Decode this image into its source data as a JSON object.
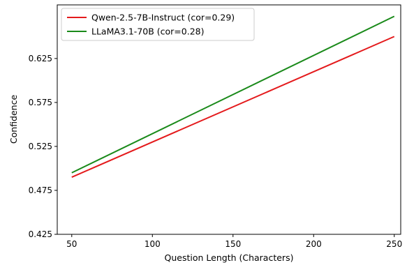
{
  "chart_data": {
    "type": "line",
    "title": "",
    "xlabel": "Question Length (Characters)",
    "ylabel": "Confidence",
    "xlim": [
      41,
      254
    ],
    "ylim": [
      0.425,
      0.686
    ],
    "xticks": [
      50,
      100,
      150,
      200,
      250
    ],
    "yticks": [
      0.425,
      0.475,
      0.525,
      0.575,
      0.625
    ],
    "ytick_labels": [
      "0.425",
      "0.475",
      "0.525",
      "0.575",
      "0.625"
    ],
    "xtick_labels": [
      "50",
      "100",
      "150",
      "200",
      "250"
    ],
    "grid": false,
    "legend_position": "top-left",
    "series": [
      {
        "name": "Qwen-2.5-7B-Instruct (cor=0.29)",
        "color": "#e41a1c",
        "x": [
          50,
          250
        ],
        "y": [
          0.49,
          0.65
        ]
      },
      {
        "name": "LLaMA3.1-70B (cor=0.28)",
        "color": "#1a8a1a",
        "x": [
          50,
          250
        ],
        "y": [
          0.495,
          0.673
        ]
      }
    ]
  }
}
